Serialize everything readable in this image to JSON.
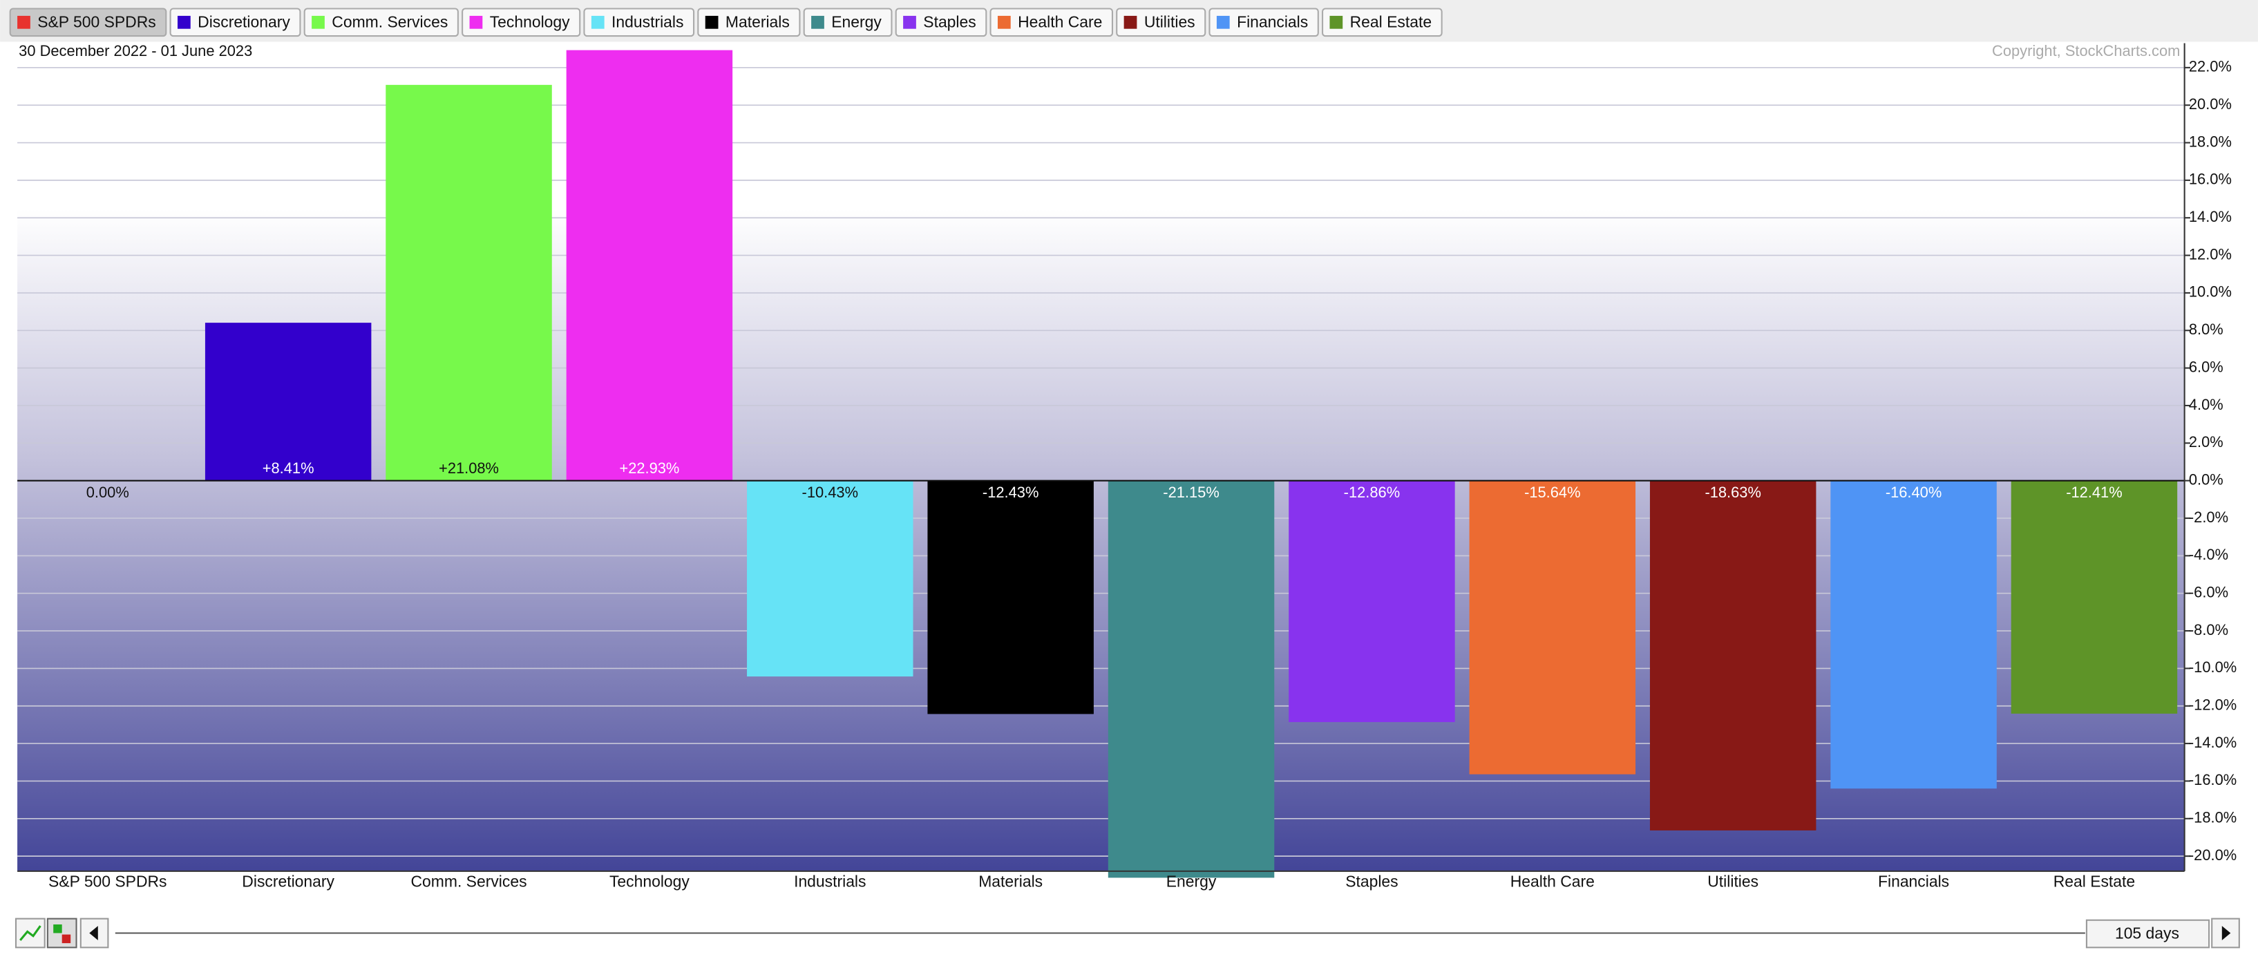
{
  "chart_data": {
    "type": "bar",
    "subtitle": "30 December 2022 - 01 June 2023",
    "credit": "Copyright, StockCharts.com",
    "period": "105 days",
    "categories": [
      "S&P 500 SPDRs",
      "Discretionary",
      "Comm. Services",
      "Technology",
      "Industrials",
      "Materials",
      "Energy",
      "Staples",
      "Health Care",
      "Utilities",
      "Financials",
      "Real Estate"
    ],
    "values": [
      0.0,
      8.41,
      21.08,
      22.93,
      -10.43,
      -12.43,
      -21.15,
      -12.86,
      -15.64,
      -18.63,
      -16.4,
      -12.41
    ],
    "value_labels": [
      "0.00%",
      "+8.41%",
      "+21.08%",
      "+22.93%",
      "-10.43%",
      "-12.43%",
      "-21.15%",
      "-12.86%",
      "-15.64%",
      "-18.63%",
      "-16.40%",
      "-12.41%"
    ],
    "colors": [
      "#e8322e",
      "#3300cc",
      "#77f94b",
      "#ee2df0",
      "#66e3f6",
      "#000000",
      "#3e8a8c",
      "#8833ee",
      "#ec6b32",
      "#881916",
      "#4f94f5",
      "#5e9428"
    ],
    "ylim": [
      -20.8,
      23.3
    ],
    "yticks": [
      {
        "value": 22,
        "label": "22.0%"
      },
      {
        "value": 20,
        "label": "20.0%"
      },
      {
        "value": 18,
        "label": "18.0%"
      },
      {
        "value": 16,
        "label": "16.0%"
      },
      {
        "value": 14,
        "label": "14.0%"
      },
      {
        "value": 12,
        "label": "12.0%"
      },
      {
        "value": 10,
        "label": "10.0%"
      },
      {
        "value": 8,
        "label": "8.0%"
      },
      {
        "value": 6,
        "label": "6.0%"
      },
      {
        "value": 4,
        "label": "4.0%"
      },
      {
        "value": 2,
        "label": "2.0%"
      },
      {
        "value": 0,
        "label": "0.0%"
      },
      {
        "value": -2,
        "label": "-2.0%"
      },
      {
        "value": -4,
        "label": "-4.0%"
      },
      {
        "value": -6,
        "label": "-6.0%"
      },
      {
        "value": -8,
        "label": "-8.0%"
      },
      {
        "value": -10,
        "label": "-10.0%"
      },
      {
        "value": -12,
        "label": "-12.0%"
      },
      {
        "value": -14,
        "label": "-14.0%"
      },
      {
        "value": -16,
        "label": "-16.0%"
      },
      {
        "value": -18,
        "label": "-18.0%"
      },
      {
        "value": -20,
        "label": "-20.0%"
      }
    ],
    "grid": true
  }
}
